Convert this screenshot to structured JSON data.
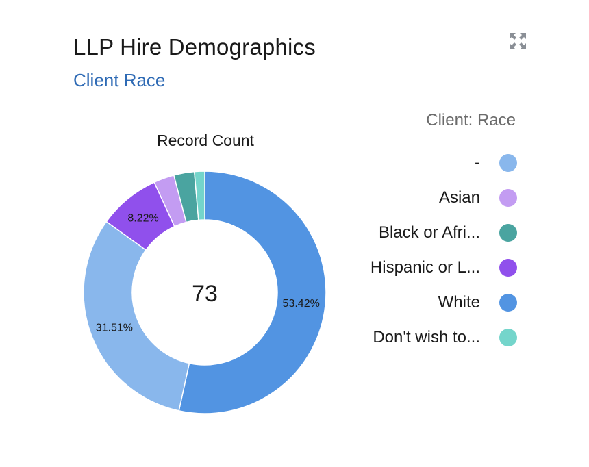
{
  "header": {
    "title": "LLP Hire Demographics",
    "subtitle": "Client Race"
  },
  "toolbar": {
    "expand_icon": "expand-icon"
  },
  "chart_data": {
    "type": "pie",
    "donut": true,
    "metric_label": "Record Count",
    "center_value": "73",
    "legend_title": "Client: Race",
    "legend_position": "right",
    "slices": [
      {
        "name": "White",
        "value": 39,
        "label": "53.42%",
        "color": "#5294e2"
      },
      {
        "name": "-",
        "value": 23,
        "label": "31.51%",
        "color": "#89b7ec"
      },
      {
        "name": "Hispanic or L...",
        "value": 6,
        "label": "8.22%",
        "color": "#9050ec"
      },
      {
        "name": "Asian",
        "value": 2,
        "label": "",
        "color": "#c39cf2"
      },
      {
        "name": "Black or Afri...",
        "value": 2,
        "label": "",
        "color": "#4aa4a0"
      },
      {
        "name": "Don't wish to...",
        "value": 1,
        "label": "",
        "color": "#74d5cb"
      }
    ],
    "legend": [
      {
        "name": "-",
        "color": "#89b7ec"
      },
      {
        "name": "Asian",
        "color": "#c39cf2"
      },
      {
        "name": "Black or Afri...",
        "color": "#4aa4a0"
      },
      {
        "name": "Hispanic or L...",
        "color": "#9050ec"
      },
      {
        "name": "White",
        "color": "#5294e2"
      },
      {
        "name": "Don't wish to...",
        "color": "#74d5cb"
      }
    ]
  }
}
